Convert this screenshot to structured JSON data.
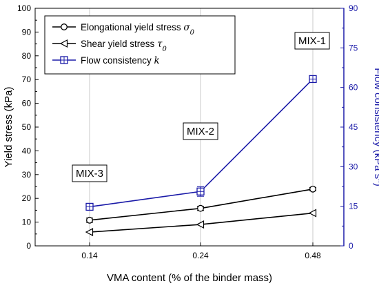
{
  "chart_data": {
    "type": "line",
    "categories": [
      "0.14",
      "0.24",
      "0.48"
    ],
    "xlabel": "VMA content (% of the binder mass)",
    "ylabel_left": "Yield stress (kPa)",
    "ylabel_right_prefix": "Flow consistency (kPa s",
    "ylabel_right_sup": "n",
    "ylabel_right_suffix": ")",
    "ylim_left": [
      0,
      100
    ],
    "ylim_right": [
      0,
      90
    ],
    "yticks_left": [
      "0",
      "10",
      "20",
      "30",
      "40",
      "50",
      "60",
      "70",
      "80",
      "90",
      "100"
    ],
    "yticks_right": [
      "0",
      "15",
      "30",
      "45",
      "60",
      "75",
      "90"
    ],
    "grid_x": true,
    "legend_position": "top-left",
    "series": [
      {
        "name_prefix": "Elongational yield stress ",
        "name_symbol": "σ",
        "name_subscript": "0",
        "axis": "left",
        "marker": "circle",
        "color": "#000000",
        "values": [
          10.8,
          15.8,
          23.9
        ],
        "errors": [
          0.9,
          0.9,
          0.7
        ]
      },
      {
        "name_prefix": "Shear yield stress ",
        "name_symbol": "τ",
        "name_subscript": "0",
        "axis": "left",
        "marker": "left-triangle",
        "color": "#000000",
        "values": [
          5.8,
          9.0,
          13.8
        ],
        "errors": [
          0,
          0,
          0
        ]
      },
      {
        "name_prefix": "Flow consistency ",
        "name_symbol": "k",
        "name_subscript": "",
        "axis": "right",
        "marker": "boxed-plus",
        "color": "#1a1aa8",
        "values": [
          14.8,
          20.6,
          63.2
        ],
        "errors": [
          1.2,
          1.8,
          1.2
        ]
      }
    ],
    "annotations": [
      {
        "text": "MIX-3",
        "category": "0.14"
      },
      {
        "text": "MIX-2",
        "category": "0.24"
      },
      {
        "text": "MIX-1",
        "category": "0.48"
      }
    ]
  }
}
